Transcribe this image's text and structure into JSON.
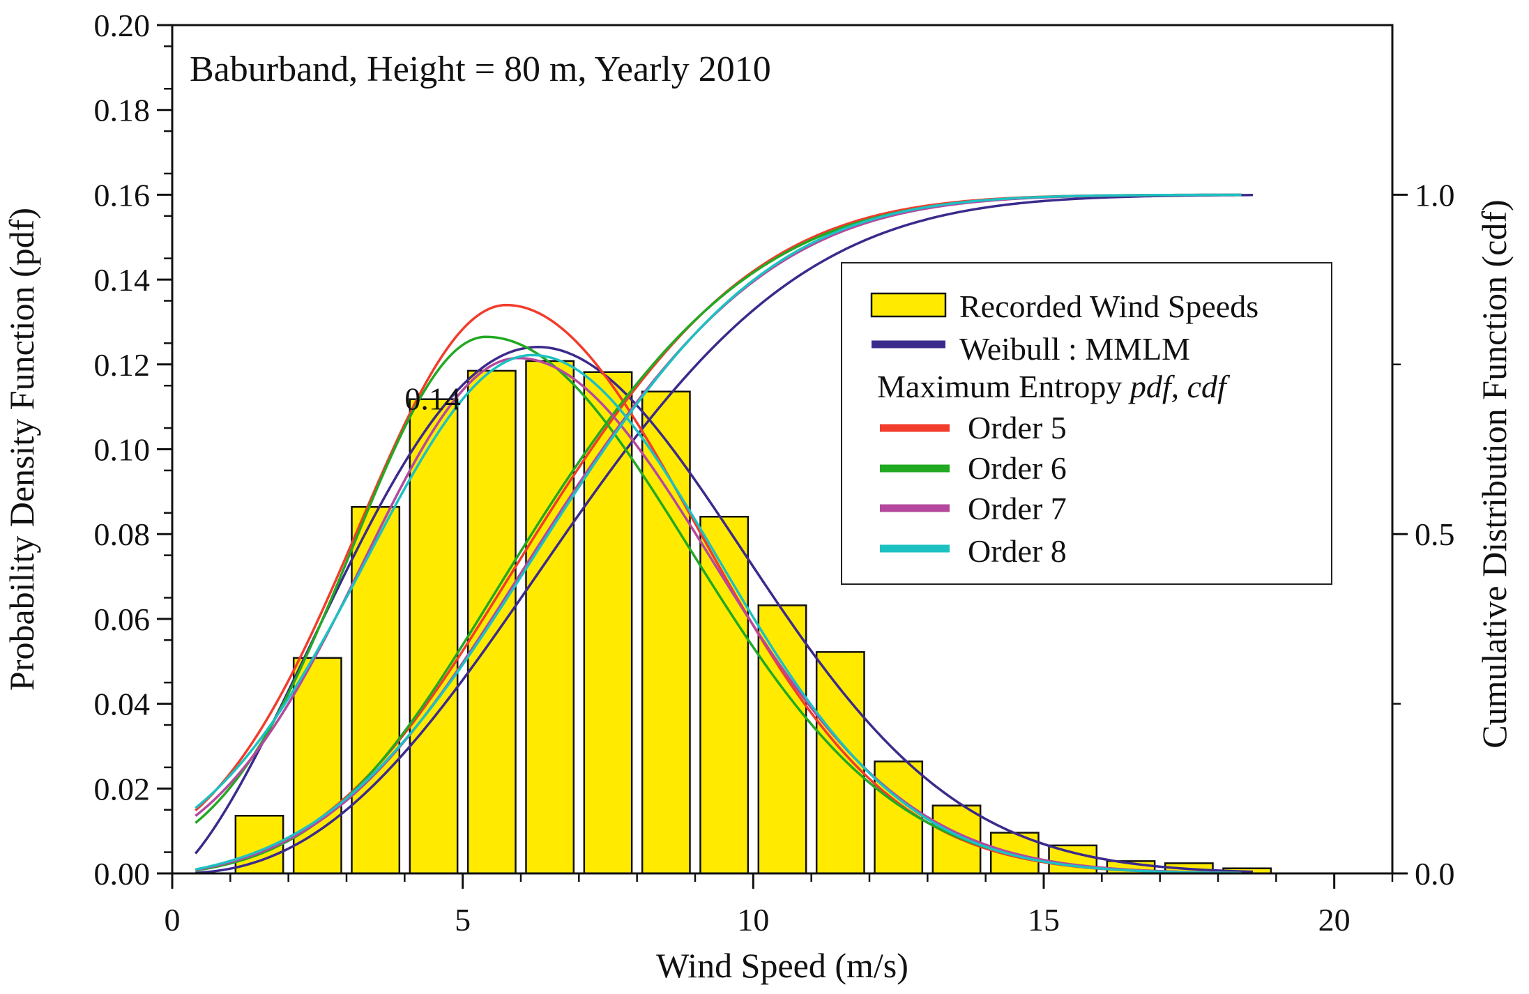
{
  "chart_data": {
    "type": "bar",
    "title": "Baburband, Height = 80 m, Yearly 2010",
    "xlabel": "Wind Speed (m/s)",
    "ylabel": "Probability Density Function (pdf)",
    "y2label": "Cumulative Distribution Function (cdf)",
    "xlim": [
      0,
      21
    ],
    "ylim": [
      0,
      0.2
    ],
    "y2lim": [
      0,
      1.25
    ],
    "x_ticks": [
      0,
      5,
      10,
      15,
      20
    ],
    "x_tick_labels": [
      "0",
      "5",
      "10",
      "15",
      "20"
    ],
    "y_ticks": [
      0,
      0.02,
      0.04,
      0.06,
      0.08,
      0.1,
      0.12,
      0.14,
      0.16,
      0.18,
      0.2
    ],
    "y_tick_labels": [
      "0.00",
      "0.02",
      "0.04",
      "0.06",
      "0.08",
      "0.10",
      "0.12",
      "0.14",
      "0.16",
      "0.18",
      "0.20"
    ],
    "y2_ticks": [
      0,
      0.5,
      1.0
    ],
    "y2_tick_labels": [
      "0.0",
      "0.5",
      "1.0"
    ],
    "annotation": "0.14",
    "annotation_at": [
      4.0,
      0.112
    ],
    "histogram": {
      "name": "Recorded Wind Speeds",
      "color": "#FFEA00",
      "bin_centers": [
        1.5,
        2.5,
        3.5,
        4.5,
        5.5,
        6.5,
        7.5,
        8.5,
        9.5,
        10.5,
        11.5,
        12.5,
        13.5,
        14.5,
        15.5,
        16.5,
        17.5,
        18.5
      ],
      "values": [
        0.0136,
        0.0508,
        0.0864,
        0.1118,
        0.1185,
        0.1208,
        0.1182,
        0.1136,
        0.0841,
        0.0632,
        0.0522,
        0.0264,
        0.016,
        0.0096,
        0.0066,
        0.0029,
        0.0024,
        0.0012
      ]
    },
    "series": [
      {
        "name": "Weibull : MMLM",
        "color": "#3B2A8C",
        "pdf": {
          "type": "weibull",
          "k": 2.4,
          "c": 7.88
        },
        "pdf_xrange": [
          0.4,
          18.6
        ],
        "cdf_xrange": [
          0.4,
          18.6
        ]
      },
      {
        "name": "Order 5",
        "color": "#F23C2C",
        "pdf": {
          "type": "gauss",
          "mu": 5.75,
          "s1": 2.55,
          "s2": 3.3,
          "peak": 0.134,
          "base": 0.0097
        },
        "pdf_xrange": [
          0.4,
          18.4
        ],
        "cdf_xrange": [
          0.4,
          18.4
        ]
      },
      {
        "name": "Order 6",
        "color": "#22A922",
        "pdf": {
          "type": "gauss",
          "mu": 5.4,
          "s1": 2.3,
          "s2": 3.5,
          "peak": 0.1265,
          "base": 0.0075
        },
        "pdf_xrange": [
          0.4,
          18.4
        ],
        "cdf_xrange": [
          0.4,
          18.4
        ]
      },
      {
        "name": "Order 7",
        "color": "#B5489E",
        "pdf": {
          "type": "gauss",
          "mu": 5.95,
          "s1": 2.65,
          "s2": 3.35,
          "peak": 0.1215,
          "base": 0.0045
        },
        "pdf_xrange": [
          0.4,
          18.4
        ],
        "cdf_xrange": [
          0.4,
          18.4
        ]
      },
      {
        "name": "Order 8",
        "color": "#1CC1C1",
        "pdf": {
          "type": "gauss",
          "mu": 6.2,
          "s1": 2.85,
          "s2": 3.2,
          "peak": 0.1222,
          "base": 0.0025
        },
        "pdf_xrange": [
          0.4,
          18.4
        ],
        "cdf_xrange": [
          0.4,
          18.4
        ]
      }
    ],
    "legend": {
      "placement": "center-right",
      "items": [
        {
          "label": "Recorded Wind Speeds",
          "kind": "bar",
          "color": "#FFEA00"
        },
        {
          "label": "Weibull : MMLM",
          "kind": "line",
          "color": "#3B2A8C"
        },
        {
          "label": "Maximum Entropy ",
          "italic_suffix": "pdf, cdf",
          "kind": "header"
        },
        {
          "label": "Order 5",
          "kind": "line",
          "color": "#F23C2C"
        },
        {
          "label": "Order 6",
          "kind": "line",
          "color": "#22A922"
        },
        {
          "label": "Order 7",
          "kind": "line",
          "color": "#B5489E"
        },
        {
          "label": "Order 8",
          "kind": "line",
          "color": "#1CC1C1"
        }
      ]
    }
  }
}
